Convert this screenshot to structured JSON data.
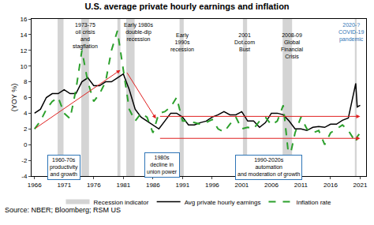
{
  "chart_data": {
    "type": "line",
    "title": "U.S. average private hourly earnings and inflation",
    "y_label": "(YOY %)",
    "x": [
      1966,
      1967,
      1968,
      1969,
      1970,
      1971,
      1972,
      1973,
      1974,
      1975,
      1976,
      1977,
      1978,
      1979,
      1980,
      1981,
      1982,
      1983,
      1984,
      1985,
      1986,
      1987,
      1988,
      1989,
      1990,
      1991,
      1992,
      1993,
      1994,
      1995,
      1996,
      1997,
      1998,
      1999,
      2000,
      2001,
      2002,
      2003,
      2004,
      2005,
      2006,
      2007,
      2008,
      2009,
      2010,
      2011,
      2012,
      2013,
      2014,
      2015,
      2016,
      2017,
      2018,
      2019,
      2020.25,
      2020.5,
      2021
    ],
    "series": [
      {
        "name": "Avg private hourly earnings",
        "color": "#000000",
        "line_style": "solid",
        "values": [
          4.0,
          4.5,
          6.0,
          6.5,
          6.5,
          7.0,
          6.5,
          6.5,
          8.0,
          8.5,
          7.5,
          7.5,
          8.0,
          8.0,
          8.5,
          9.0,
          7.0,
          4.5,
          3.5,
          3.0,
          2.5,
          2.0,
          3.0,
          4.0,
          4.0,
          3.5,
          2.5,
          2.5,
          2.8,
          3.0,
          3.5,
          3.8,
          4.2,
          3.8,
          3.8,
          4.2,
          3.0,
          3.0,
          2.2,
          2.8,
          4.0,
          4.0,
          3.8,
          3.0,
          2.0,
          2.0,
          1.8,
          2.2,
          2.3,
          2.2,
          2.6,
          2.6,
          3.1,
          3.4,
          7.8,
          4.8,
          5.0
        ]
      },
      {
        "name": "Inflation rate",
        "color": "#2ca02c",
        "line_style": "dash",
        "values": [
          2.0,
          3.0,
          4.5,
          5.5,
          6.0,
          4.0,
          3.3,
          7.0,
          12.0,
          8.0,
          5.5,
          6.5,
          8.0,
          12.0,
          14.5,
          9.5,
          4.5,
          3.0,
          4.0,
          3.5,
          1.5,
          4.0,
          4.2,
          4.8,
          6.0,
          3.0,
          3.0,
          2.8,
          2.6,
          2.8,
          3.2,
          2.0,
          1.6,
          2.6,
          3.5,
          2.0,
          2.2,
          2.0,
          3.0,
          3.5,
          2.5,
          3.0,
          5.0,
          -2.0,
          1.5,
          3.5,
          2.0,
          1.5,
          1.8,
          0.0,
          1.5,
          2.0,
          2.5,
          1.8,
          0.3,
          1.0,
          1.5
        ]
      }
    ],
    "recessions": {
      "name": "Recession indicator",
      "color": "#d4d4d4",
      "periods": [
        [
          1969.9,
          1970.9
        ],
        [
          1973.9,
          1975.2
        ],
        [
          1980.0,
          1980.5
        ],
        [
          1981.5,
          1982.9
        ],
        [
          1990.5,
          1991.2
        ],
        [
          2001.2,
          2001.9
        ],
        [
          2007.9,
          2009.5
        ],
        [
          2020.1,
          2020.4
        ]
      ]
    },
    "xlim": [
      1965.5,
      2022
    ],
    "xticks": [
      1966,
      1971,
      1976,
      1981,
      1986,
      1991,
      1996,
      2001,
      2006,
      2011,
      2016,
      2021
    ],
    "ylim": [
      -4,
      16
    ],
    "yticks": [
      -4,
      -2,
      0,
      2,
      4,
      6,
      8,
      10,
      12,
      14,
      16
    ],
    "grid": false,
    "legend": "bottom",
    "annotations": [
      {
        "lines": [
          "1973-75",
          "oil crisis",
          "and",
          "stagflation"
        ],
        "x": 1974.5,
        "y": 15.8,
        "color": "#000000"
      },
      {
        "lines": [
          "Early 1980s",
          "double-dip",
          "recession"
        ],
        "x": 1983.5,
        "y": 15.8,
        "color": "#000000"
      },
      {
        "lines": [
          "Early",
          "1990s",
          "recession"
        ],
        "x": 1991,
        "y": 14.5,
        "color": "#000000"
      },
      {
        "lines": [
          "2001",
          "Dot.com",
          "Bust"
        ],
        "x": 2001.5,
        "y": 14.5,
        "color": "#000000"
      },
      {
        "lines": [
          "2008-09",
          "Global",
          "Financial",
          "Crisis"
        ],
        "x": 2009.5,
        "y": 14.5,
        "color": "#000000"
      },
      {
        "lines": [
          "2020-?",
          "COVID-19",
          "pandemic"
        ],
        "x": 2019.5,
        "y": 15.8,
        "color": "#2e75b6"
      }
    ],
    "boxes": [
      {
        "lines": [
          "1960-70s",
          "productivity",
          "and growth"
        ],
        "x": 1971,
        "y": -1.3,
        "color": "#2e75b6"
      },
      {
        "lines": [
          "1980s",
          "decline in",
          "union power"
        ],
        "x": 1987.5,
        "y": -1.0,
        "color": "#2e75b6"
      },
      {
        "lines": [
          "1990-2020s",
          "automation",
          "and moderation of growth"
        ],
        "x": 2005.5,
        "y": -1.3,
        "color": "#2e75b6"
      }
    ],
    "trend_arrows": {
      "color": "#e02020",
      "segments": [
        [
          1966,
          2.0,
          1980.5,
          9.5
        ],
        [
          1981.5,
          9.3,
          1986.5,
          3.3
        ],
        [
          1987,
          3.6,
          2021,
          3.6
        ],
        [
          1987,
          0.8,
          2021,
          0.8
        ]
      ]
    },
    "source": "Source: NBER; Bloomberg; RSM US"
  }
}
